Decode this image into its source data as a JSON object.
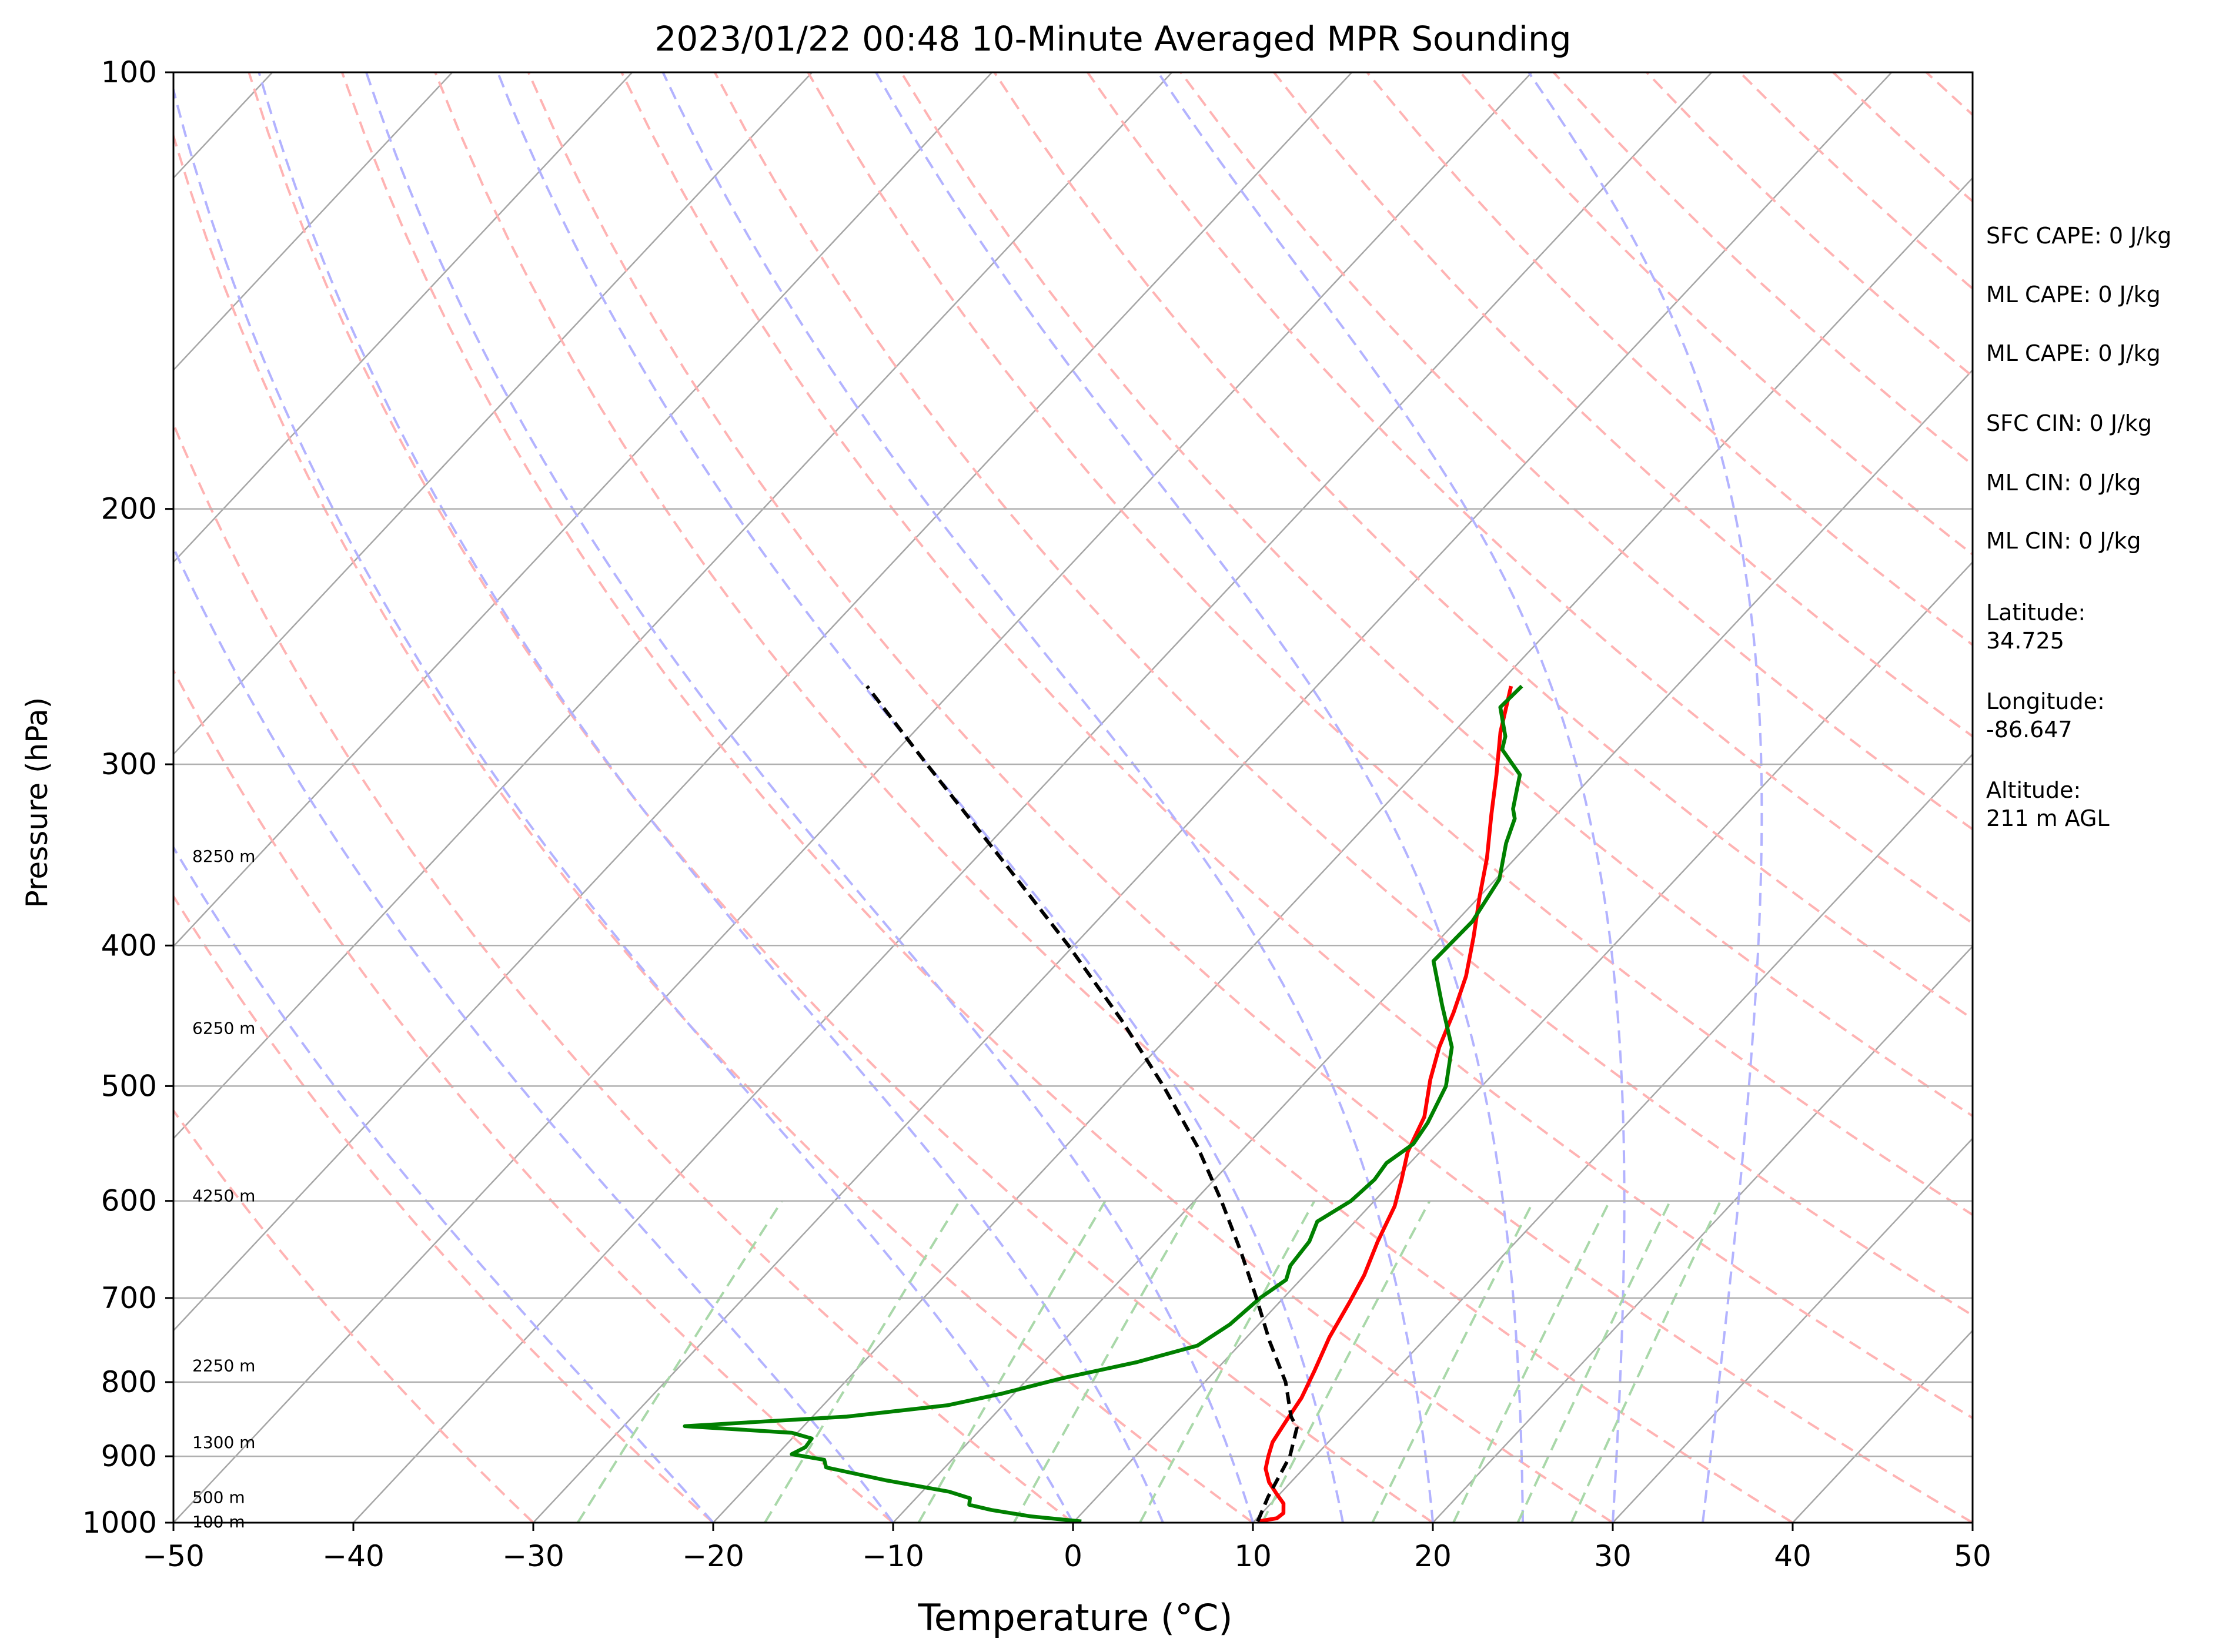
{
  "chart_data": {
    "type": "line",
    "chart_kind": "skew-t log-p sounding",
    "title": "2023/01/22 00:48 10-Minute Averaged MPR Sounding",
    "xlabel": "Temperature (°C)",
    "ylabel": "Pressure (hPa)",
    "xlim": [
      -50,
      50
    ],
    "ylim": [
      1000,
      100
    ],
    "y_scale": "log",
    "x_ticks": [
      -50,
      -40,
      -30,
      -20,
      -10,
      0,
      10,
      20,
      30,
      40,
      50
    ],
    "x_tick_labels": [
      "−50",
      "−40",
      "−30",
      "−20",
      "−10",
      "0",
      "10",
      "20",
      "30",
      "40",
      "50"
    ],
    "y_ticks": [
      100,
      200,
      300,
      400,
      500,
      600,
      700,
      800,
      900,
      1000
    ],
    "y_tick_labels": [
      "100",
      "200",
      "300",
      "400",
      "500",
      "600",
      "700",
      "800",
      "900",
      "1000"
    ],
    "grid": true,
    "height_labels": [
      {
        "text": "8250 m",
        "p": 347
      },
      {
        "text": "6250 m",
        "p": 456
      },
      {
        "text": "4250 m",
        "p": 595
      },
      {
        "text": "2250 m",
        "p": 779
      },
      {
        "text": "1300 m",
        "p": 880
      },
      {
        "text": "500 m",
        "p": 960
      },
      {
        "text": "100 m",
        "p": 998
      }
    ],
    "side_info": [
      "SFC CAPE: 0 J/kg",
      "ML CAPE: 0 J/kg",
      "ML CAPE: 0 J/kg",
      "SFC CIN: 0 J/kg",
      "ML CIN: 0 J/kg",
      "ML CIN: 0 J/kg",
      "Latitude:\n34.725",
      "Longitude:\n-86.647",
      "Altitude:\n211 m AGL"
    ],
    "colors": {
      "temperature": "#ff0000",
      "dewpoint": "#008000",
      "parcel": "#000000",
      "isotherm": "#a6a6a6",
      "isobar": "#b0b0b0",
      "dry_adiabat": "#ffb3b3",
      "moist_adiabat": "#b3b3ff",
      "mixing_ratio": "#a9d8a9"
    },
    "series": [
      {
        "key": "temperature",
        "points": [
          [
            998,
            10.2
          ],
          [
            993,
            11.1
          ],
          [
            985,
            11.2
          ],
          [
            970,
            10.7
          ],
          [
            955,
            9.8
          ],
          [
            938,
            8.8
          ],
          [
            918,
            7.9
          ],
          [
            900,
            7.4
          ],
          [
            880,
            6.9
          ],
          [
            855,
            6.6
          ],
          [
            820,
            6.2
          ],
          [
            785,
            5.5
          ],
          [
            745,
            4.6
          ],
          [
            705,
            3.9
          ],
          [
            675,
            3.3
          ],
          [
            640,
            2.3
          ],
          [
            605,
            1.4
          ],
          [
            580,
            0.4
          ],
          [
            555,
            -0.7
          ],
          [
            525,
            -1.6
          ],
          [
            495,
            -3.2
          ],
          [
            470,
            -4.4
          ],
          [
            445,
            -5.4
          ],
          [
            420,
            -6.6
          ],
          [
            395,
            -8.2
          ],
          [
            370,
            -10.0
          ],
          [
            348,
            -11.6
          ],
          [
            325,
            -13.6
          ],
          [
            305,
            -15.4
          ],
          [
            285,
            -17.4
          ],
          [
            265,
            -19.2
          ]
        ]
      },
      {
        "key": "dewpoint",
        "points": [
          [
            998,
            0.4
          ],
          [
            990,
            -2.7
          ],
          [
            980,
            -5.2
          ],
          [
            972,
            -6.7
          ],
          [
            962,
            -7.0
          ],
          [
            952,
            -8.5
          ],
          [
            935,
            -12.6
          ],
          [
            916,
            -16.6
          ],
          [
            905,
            -17.1
          ],
          [
            897,
            -19.2
          ],
          [
            887,
            -18.8
          ],
          [
            875,
            -18.9
          ],
          [
            867,
            -20.3
          ],
          [
            858,
            -26.6
          ],
          [
            845,
            -18.1
          ],
          [
            830,
            -13.1
          ],
          [
            815,
            -10.7
          ],
          [
            795,
            -8.1
          ],
          [
            775,
            -4.8
          ],
          [
            755,
            -2.3
          ],
          [
            730,
            -1.6
          ],
          [
            700,
            -1.3
          ],
          [
            680,
            -0.8
          ],
          [
            665,
            -1.3
          ],
          [
            640,
            -1.5
          ],
          [
            620,
            -2.1
          ],
          [
            600,
            -1.3
          ],
          [
            580,
            -1.1
          ],
          [
            565,
            -1.3
          ],
          [
            548,
            -0.8
          ],
          [
            530,
            -1.1
          ],
          [
            500,
            -2.0
          ],
          [
            470,
            -3.7
          ],
          [
            440,
            -6.4
          ],
          [
            410,
            -9.2
          ],
          [
            385,
            -9.1
          ],
          [
            360,
            -9.8
          ],
          [
            340,
            -11.3
          ],
          [
            327,
            -12.1
          ],
          [
            322,
            -12.7
          ],
          [
            305,
            -14.1
          ],
          [
            293,
            -16.4
          ],
          [
            287,
            -16.9
          ],
          [
            274,
            -18.7
          ],
          [
            265,
            -18.6
          ]
        ]
      },
      {
        "key": "parcel",
        "points": [
          [
            998,
            10.2
          ],
          [
            960,
            9.5
          ],
          [
            900,
            8.6
          ],
          [
            860,
            7.5
          ],
          [
            845,
            6.6
          ],
          [
            800,
            4.5
          ],
          [
            750,
            1.5
          ],
          [
            700,
            -1.5
          ],
          [
            650,
            -4.8
          ],
          [
            600,
            -8.5
          ],
          [
            550,
            -12.7
          ],
          [
            500,
            -17.7
          ],
          [
            450,
            -23.5
          ],
          [
            400,
            -30.3
          ],
          [
            350,
            -38.3
          ],
          [
            300,
            -47.6
          ],
          [
            265,
            -55.0
          ]
        ]
      }
    ]
  }
}
